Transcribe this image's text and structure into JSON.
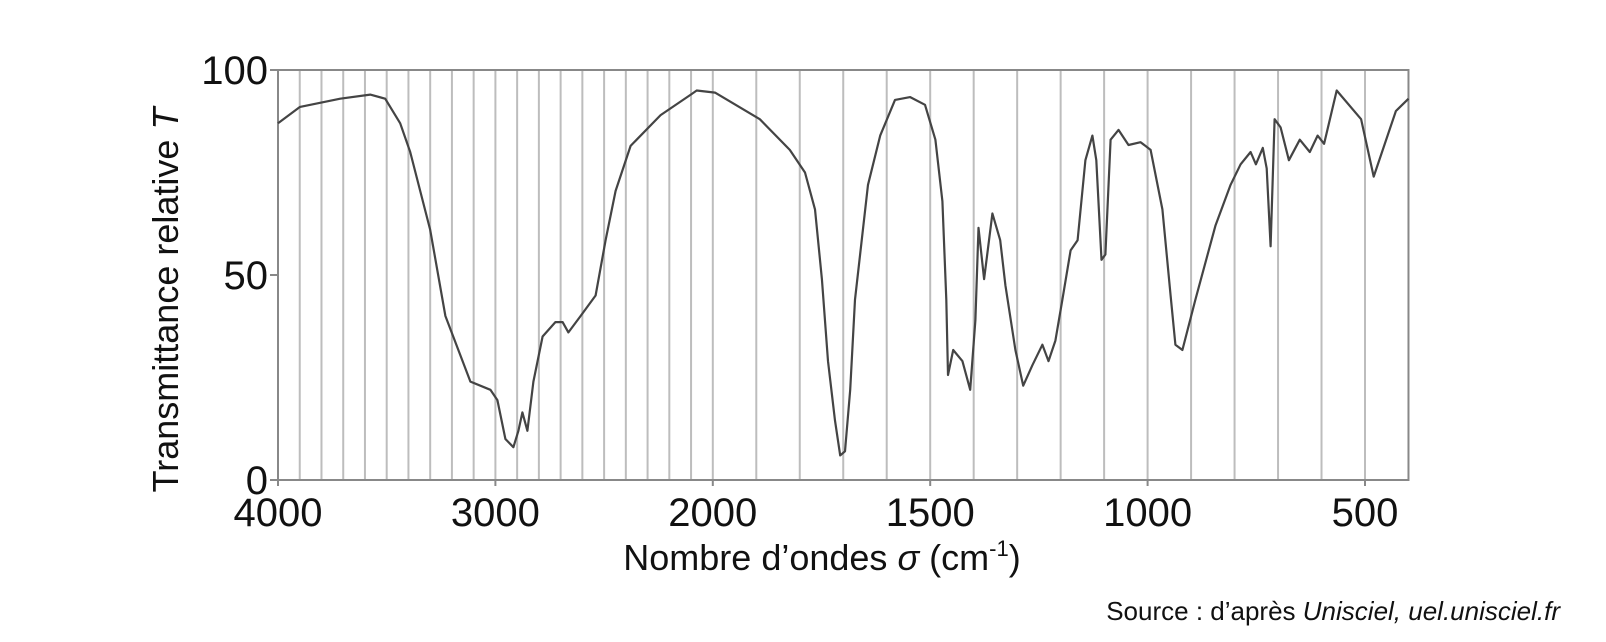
{
  "chart_data": {
    "type": "line",
    "y_label": [
      "Transmittance relative ",
      "T"
    ],
    "x_label": [
      "Nombre d’ondes ",
      "σ",
      " (cm",
      "-1",
      ")"
    ],
    "source": [
      "Source : d’après ",
      "Unisciel, uel.unisciel.fr"
    ],
    "xlim": [
      4000,
      400
    ],
    "xticks": [
      4000,
      3000,
      2000,
      1500,
      1000,
      500
    ],
    "xgrid": [
      4000,
      3900,
      3800,
      3700,
      3600,
      3500,
      3400,
      3300,
      3200,
      3100,
      3000,
      2900,
      2800,
      2700,
      2600,
      2500,
      2400,
      2300,
      2200,
      2100,
      2000,
      1900,
      1800,
      1700,
      1600,
      1500,
      1400,
      1300,
      1200,
      1100,
      1000,
      900,
      800,
      700,
      600,
      500
    ],
    "ylim": [
      0,
      100
    ],
    "yticks": [
      0,
      50,
      100
    ],
    "color": "#444444",
    "x": [
      4000,
      3899,
      3714,
      3576,
      3507,
      3438,
      3392,
      3300,
      3230,
      3115,
      3023,
      2991,
      2954,
      2917,
      2894,
      2876,
      2853,
      2825,
      2783,
      2724,
      2691,
      2664,
      2608,
      2539,
      2493,
      2447,
      2378,
      2240,
      2101,
      2074,
      1995,
      1892,
      1823,
      1788,
      1765,
      1749,
      1735,
      1719,
      1707,
      1696,
      1684,
      1673,
      1643,
      1615,
      1581,
      1546,
      1512,
      1488,
      1472,
      1463,
      1459,
      1447,
      1426,
      1408,
      1396,
      1389,
      1376,
      1357,
      1339,
      1327,
      1304,
      1286,
      1265,
      1242,
      1228,
      1212,
      1196,
      1177,
      1161,
      1143,
      1127,
      1118,
      1106,
      1097,
      1085,
      1067,
      1044,
      1016,
      993,
      966,
      947,
      936,
      920,
      890,
      844,
      809,
      786,
      763,
      751,
      735,
      726,
      717,
      708,
      694,
      675,
      650,
      627,
      609,
      594,
      565,
      509,
      480,
      429,
      400
    ],
    "values": [
      87,
      91,
      93,
      94,
      93,
      87,
      80,
      61,
      40,
      24,
      22,
      19.5,
      10,
      8,
      12,
      16.5,
      12,
      24,
      35,
      38.5,
      38.5,
      36,
      40,
      45,
      58.5,
      70.5,
      81.5,
      89,
      94,
      95,
      94.5,
      88,
      80.5,
      75,
      66,
      49,
      29,
      14.5,
      6,
      7,
      22,
      44,
      72,
      84,
      92.7,
      93.4,
      91.5,
      83,
      68,
      44,
      25.6,
      31.7,
      29,
      22,
      39,
      61.5,
      49,
      65,
      58.5,
      47.5,
      31.7,
      23,
      28,
      33,
      29,
      34,
      44,
      56,
      58.5,
      78,
      84,
      78,
      53.7,
      55,
      83,
      85.4,
      81.7,
      82.4,
      80.5,
      66,
      45,
      33,
      31.7,
      44,
      62,
      72,
      77,
      80,
      77,
      81,
      76,
      57,
      88,
      86,
      78,
      83,
      80,
      84,
      82,
      95,
      88,
      74,
      90,
      93
    ]
  }
}
